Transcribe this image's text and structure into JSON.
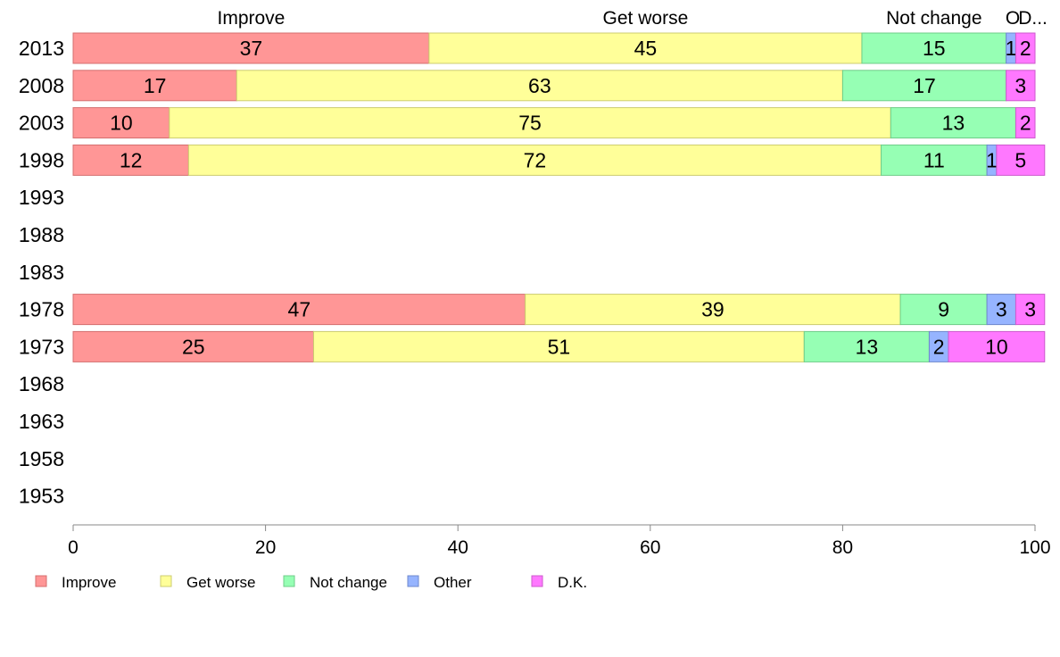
{
  "chart_data": {
    "type": "bar",
    "orientation": "horizontal",
    "stacked": true,
    "categories": [
      "2013",
      "2008",
      "2003",
      "1998",
      "1993",
      "1988",
      "1983",
      "1978",
      "1973",
      "1968",
      "1963",
      "1958",
      "1953"
    ],
    "series": [
      {
        "name": "Improve",
        "color": "#ff9696",
        "border": "#d46f6f",
        "values": [
          37,
          17,
          10,
          12,
          null,
          null,
          null,
          47,
          25,
          null,
          null,
          null,
          null
        ],
        "labels": [
          "37",
          "17",
          "10",
          "12",
          "",
          "",
          "",
          "47",
          "25",
          "",
          "",
          "",
          ""
        ]
      },
      {
        "name": "Get worse",
        "color": "#ffff99",
        "border": "#cccc70",
        "values": [
          45,
          63,
          75,
          72,
          null,
          null,
          null,
          39,
          51,
          null,
          null,
          null,
          null
        ],
        "labels": [
          "45",
          "63",
          "75",
          "72",
          "",
          "",
          "",
          "39",
          "51",
          "",
          "",
          "",
          ""
        ]
      },
      {
        "name": "Not change",
        "color": "#96ffb4",
        "border": "#6fcc88",
        "values": [
          15,
          17,
          13,
          11,
          null,
          null,
          null,
          9,
          13,
          null,
          null,
          null,
          null
        ],
        "labels": [
          "15",
          "17",
          "13",
          "11",
          "",
          "",
          "",
          "9",
          "13",
          "",
          "",
          "",
          ""
        ]
      },
      {
        "name": "Other",
        "color": "#96b4ff",
        "border": "#6f88cc",
        "values": [
          1,
          0,
          0,
          1,
          null,
          null,
          null,
          3,
          2,
          null,
          null,
          null,
          null
        ],
        "labels": [
          "1",
          "",
          "",
          "1",
          "",
          "",
          "",
          "3",
          "2",
          "",
          "",
          "",
          ""
        ]
      },
      {
        "name": "D.K.",
        "color": "#ff78ff",
        "border": "#cc5acc",
        "values": [
          2,
          3,
          2,
          5,
          null,
          null,
          null,
          3,
          10,
          null,
          null,
          null,
          null
        ],
        "labels": [
          "2",
          "3",
          "2",
          "5",
          "",
          "",
          "",
          "3",
          "10",
          "",
          "",
          "",
          ""
        ]
      }
    ],
    "top_labels": [
      "Improve",
      "Get worse",
      "Not change",
      "O",
      "D..."
    ],
    "x_ticks": [
      "0",
      "20",
      "40",
      "60",
      "80",
      "100"
    ],
    "xlim": [
      0,
      100
    ],
    "grid": false,
    "legend_position": "bottom",
    "title": "",
    "xlabel": "",
    "ylabel": ""
  }
}
